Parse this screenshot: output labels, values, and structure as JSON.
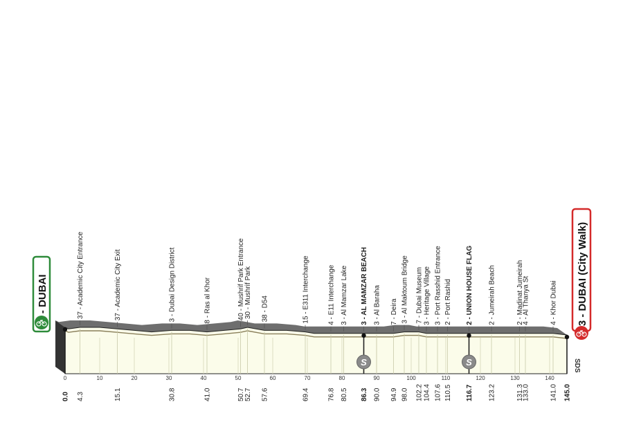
{
  "start": {
    "label": "2 - DUBAI",
    "km": "0.0"
  },
  "finish": {
    "label": "3 - DUBAI (City Walk)",
    "km": "145.0"
  },
  "sprint_icon": "S",
  "brand_mark": "SDS",
  "colors": {
    "start_border": "#2e8b3a",
    "finish_border": "#d42a2a",
    "profile_fill": "#fbfcea",
    "profile_edge": "#222222",
    "side_face": "#333333",
    "sprint_badge": "#8a8a8a"
  },
  "chart_data": {
    "type": "area",
    "title": "",
    "xlabel": "",
    "ylabel": "",
    "xlim": [
      0,
      145
    ],
    "x_ticks": [
      0,
      10,
      20,
      30,
      40,
      50,
      60,
      70,
      80,
      90,
      100,
      110,
      120,
      130,
      140
    ],
    "profile": {
      "x": [
        0,
        1,
        4.3,
        10,
        15.1,
        20,
        25,
        30.8,
        36,
        41.0,
        46,
        50.7,
        52.7,
        57.6,
        60,
        64,
        69.4,
        72,
        76.8,
        80.5,
        86.3,
        90.0,
        94.9,
        98.0,
        102.2,
        104.4,
        107.6,
        110.5,
        116.7,
        123.2,
        131.3,
        133.0,
        138,
        141.0,
        145.0
      ],
      "y": [
        5,
        4,
        5,
        5,
        4,
        3,
        2,
        3,
        3,
        2,
        3,
        4,
        5,
        3,
        3,
        3,
        2,
        1,
        1,
        1,
        1,
        1,
        1,
        2,
        2,
        1,
        1,
        1,
        1,
        1,
        1,
        1,
        1,
        1,
        0
      ]
    },
    "waypoints": [
      {
        "km": "0.0",
        "label": "",
        "bold": true,
        "major": true
      },
      {
        "km": "4.3",
        "label": "37 - Academic City Entrance",
        "bold": false
      },
      {
        "km": "15.1",
        "label": "37 - Academic City Exit",
        "bold": false
      },
      {
        "km": "30.8",
        "label": "3 - Dubai Design District",
        "bold": false
      },
      {
        "km": "41.0",
        "label": "8 - Ras al Khor",
        "bold": false
      },
      {
        "km": "50.7",
        "label": "40 - Mushrif Park Entrance",
        "bold": false
      },
      {
        "km": "52.7",
        "label": "30 - Mushrif Park",
        "bold": false
      },
      {
        "km": "57.6",
        "label": "38 - D54",
        "bold": false
      },
      {
        "km": "69.4",
        "label": "15 - E311 Interchange",
        "bold": false
      },
      {
        "km": "76.8",
        "label": "4 - E11 Interchange",
        "bold": false
      },
      {
        "km": "80.5",
        "label": "3 - Al Mamzar Lake",
        "bold": false
      },
      {
        "km": "86.3",
        "label": "3 - AL MAMZAR BEACH",
        "bold": true,
        "sprint": true
      },
      {
        "km": "90.0",
        "label": "3 - Al Baraha",
        "bold": false
      },
      {
        "km": "94.9",
        "label": "7 - Deira",
        "bold": false
      },
      {
        "km": "98.0",
        "label": "3 - Al Maktoum Bridge",
        "bold": false
      },
      {
        "km": "102.2",
        "label": "7 - Dubai Museum",
        "bold": false
      },
      {
        "km": "104.4",
        "label": "3 - Heritage Village",
        "bold": false
      },
      {
        "km": "107.6",
        "label": "3 - Port Rasshid Entrance",
        "bold": false
      },
      {
        "km": "110.5",
        "label": "2 - Port Rashid",
        "bold": false
      },
      {
        "km": "116.7",
        "label": "2 - UNION HOUSE FLAG",
        "bold": true,
        "sprint": true
      },
      {
        "km": "123.2",
        "label": "2 - Jumeirah Beach",
        "bold": false
      },
      {
        "km": "131.3",
        "label": "2 - Madinat Jumeirah",
        "bold": false
      },
      {
        "km": "133.0",
        "label": "4 - Al Thanya St",
        "bold": false
      },
      {
        "km": "141.0",
        "label": "4 - Khor Dubai",
        "bold": false
      },
      {
        "km": "145.0",
        "label": "",
        "bold": true,
        "major": true
      }
    ]
  }
}
